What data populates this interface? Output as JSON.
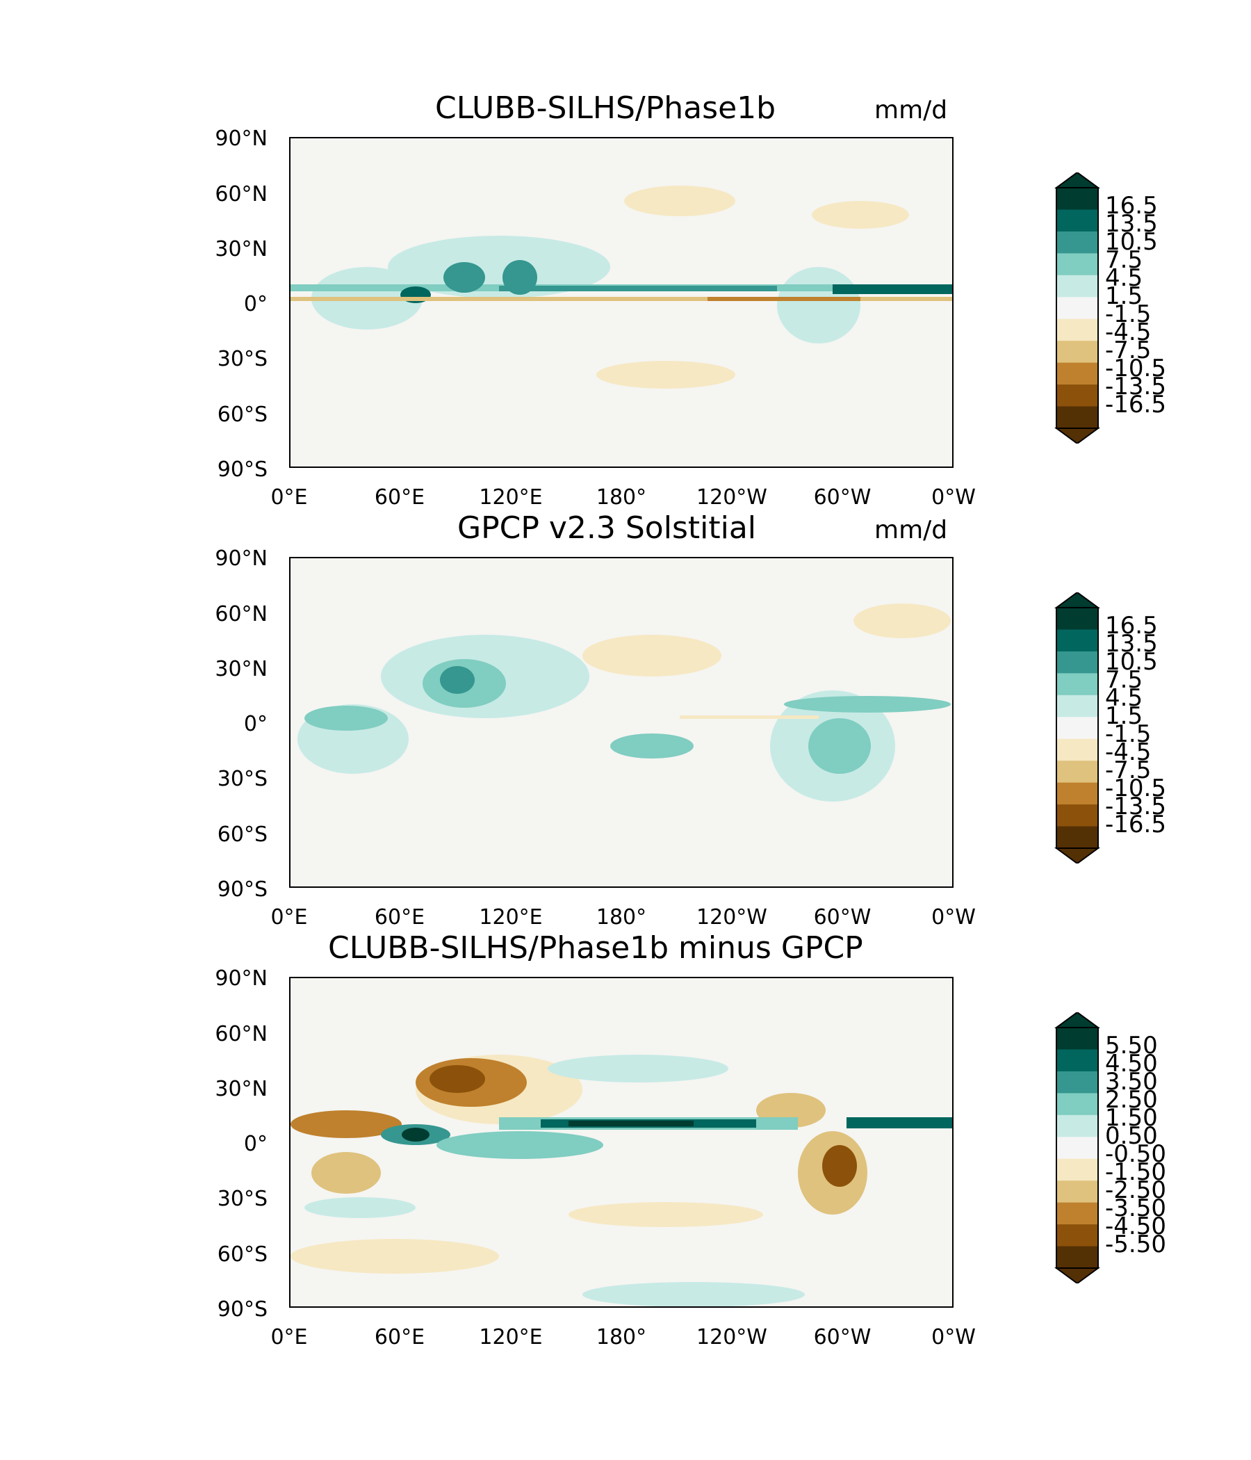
{
  "panels": [
    {
      "title": "CLUBB-SILHS/Phase1b",
      "units": "mm/d",
      "lat_ticks": [
        "90°N",
        "60°N",
        "30°N",
        "0°",
        "30°S",
        "60°S",
        "90°S"
      ],
      "lon_ticks": [
        "0°E",
        "60°E",
        "120°E",
        "180°",
        "120°W",
        "60°W",
        "0°W"
      ],
      "colorbar_labels": [
        "16.5",
        "13.5",
        "10.5",
        "7.5",
        "4.5",
        "1.5",
        "-1.5",
        "-4.5",
        "-7.5",
        "-10.5",
        "-13.5",
        "-16.5"
      ]
    },
    {
      "title": "GPCP v2.3 Solstitial",
      "units": "mm/d",
      "lat_ticks": [
        "90°N",
        "60°N",
        "30°N",
        "0°",
        "30°S",
        "60°S",
        "90°S"
      ],
      "lon_ticks": [
        "0°E",
        "60°E",
        "120°E",
        "180°",
        "120°W",
        "60°W",
        "0°W"
      ],
      "colorbar_labels": [
        "16.5",
        "13.5",
        "10.5",
        "7.5",
        "4.5",
        "1.5",
        "-1.5",
        "-4.5",
        "-7.5",
        "-10.5",
        "-13.5",
        "-16.5"
      ]
    },
    {
      "title": "CLUBB-SILHS/Phase1b minus GPCP",
      "units": "",
      "lat_ticks": [
        "90°N",
        "60°N",
        "30°N",
        "0°",
        "30°S",
        "60°S",
        "90°S"
      ],
      "lon_ticks": [
        "0°E",
        "60°E",
        "120°E",
        "180°",
        "120°W",
        "60°W",
        "0°W"
      ],
      "colorbar_labels": [
        "5.50",
        "4.50",
        "3.50",
        "2.50",
        "1.50",
        "0.50",
        "-0.50",
        "-1.50",
        "-2.50",
        "-3.50",
        "-4.50",
        "-5.50"
      ]
    }
  ],
  "colors": {
    "ocean_bg": "#f5f5f2",
    "cmap": [
      "#003c30",
      "#01665e",
      "#35978f",
      "#80cdc1",
      "#c7eae5",
      "#f5f5f5",
      "#f6e8c3",
      "#dfc27d",
      "#bf812d",
      "#8c510a",
      "#543005"
    ]
  }
}
